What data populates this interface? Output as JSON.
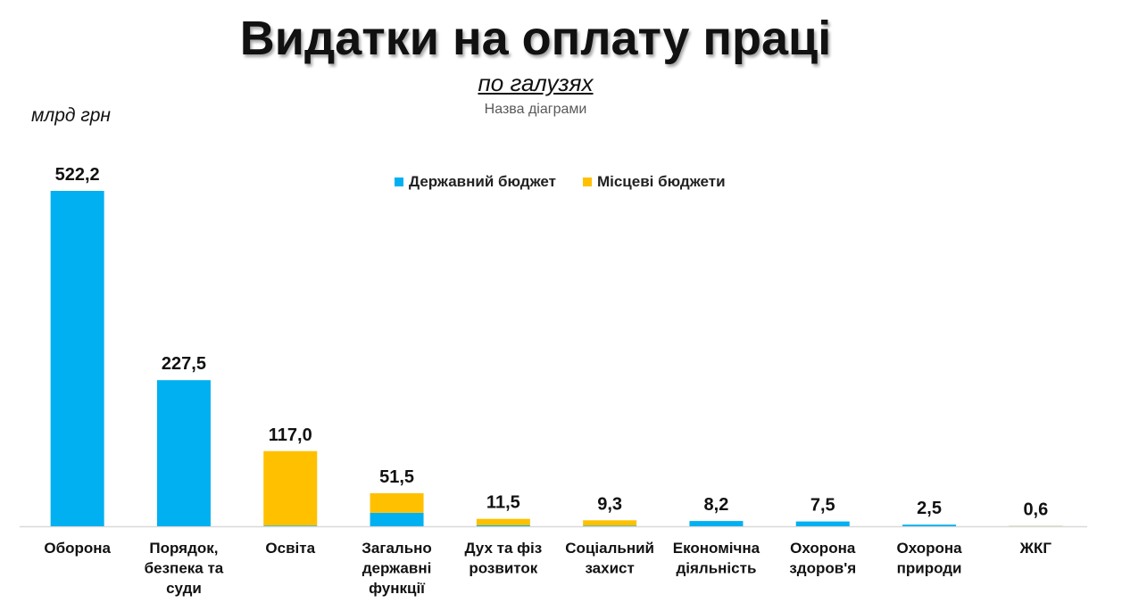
{
  "title": "Видатки на оплату праці",
  "subtitle": "по галузях",
  "chart_placeholder_title": "Назва діаграми",
  "unit": "млрд грн",
  "colors": {
    "state": "#00B0F0",
    "local": "#FFC000"
  },
  "chart_data": {
    "type": "bar",
    "stacked": true,
    "categories": [
      [
        "Оборона"
      ],
      [
        "Порядок,",
        "безпека та",
        "суди"
      ],
      [
        "Освіта"
      ],
      [
        "Загально",
        "державні",
        "функції"
      ],
      [
        "Дух та фіз",
        "розвиток"
      ],
      [
        "Соціальний",
        "захист"
      ],
      [
        "Економічна",
        "діяльність"
      ],
      [
        "Охорона",
        "здоров'я"
      ],
      [
        "Охорона",
        "природи"
      ],
      [
        "ЖКГ"
      ]
    ],
    "series": [
      {
        "name": "Державний бюджет",
        "values": [
          522.2,
          227.5,
          1.0,
          21.0,
          1.5,
          0.8,
          8.2,
          7.5,
          2.5,
          0.3
        ]
      },
      {
        "name": "Місцеві бюджети",
        "values": [
          0,
          0,
          116.0,
          30.5,
          10.0,
          8.5,
          0,
          0,
          0,
          0.3
        ]
      }
    ],
    "totals": [
      "522,2",
      "227,5",
      "117,0",
      "51,5",
      "11,5",
      "9,3",
      "8,2",
      "7,5",
      "2,5",
      "0,6"
    ],
    "ylim": [
      0,
      522.2
    ],
    "legend_position": "top-center",
    "grid": false
  }
}
